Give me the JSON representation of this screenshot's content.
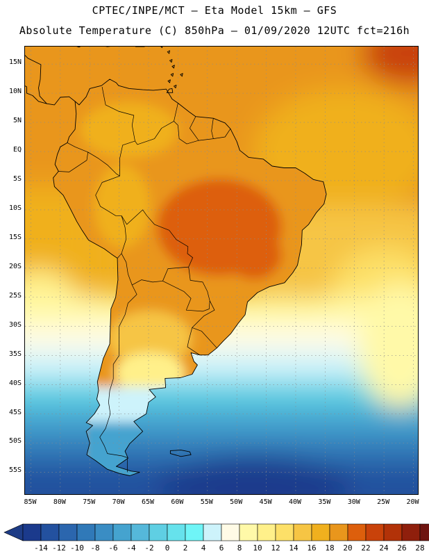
{
  "header": {
    "line1": "CPTEC/INPE/MCT –  Eta Model 15km – GFS",
    "line2": "Absolute Temperature (C) 850hPa – 01/09/2020 12UTC fct=216h"
  },
  "map": {
    "lat_labels": [
      "15N",
      "10N",
      "5N",
      "EQ",
      "5S",
      "10S",
      "15S",
      "20S",
      "25S",
      "30S",
      "35S",
      "40S",
      "45S",
      "50S",
      "55S"
    ],
    "lon_labels": [
      "85W",
      "80W",
      "75W",
      "70W",
      "65W",
      "60W",
      "55W",
      "50W",
      "45W",
      "40W",
      "35W",
      "30W",
      "25W",
      "20W"
    ],
    "lat_values": [
      15,
      10,
      5,
      0,
      -5,
      -10,
      -15,
      -20,
      -25,
      -30,
      -35,
      -40,
      -45,
      -50,
      -55
    ],
    "lon_values": [
      -85,
      -80,
      -75,
      -70,
      -65,
      -60,
      -55,
      -50,
      -45,
      -40,
      -35,
      -30,
      -25,
      -20
    ],
    "extent": {
      "lon_min": -86,
      "lon_max": -19,
      "lat_min": -59,
      "lat_max": 18
    }
  },
  "colorbar": {
    "labels": [
      "-14",
      "-12",
      "-10",
      "-8",
      "-6",
      "-4",
      "-2",
      "0",
      "2",
      "4",
      "6",
      "8",
      "10",
      "12",
      "14",
      "16",
      "18",
      "20",
      "22",
      "24",
      "26",
      "28"
    ],
    "colors": [
      "#1b3a8c",
      "#23519f",
      "#2b66ae",
      "#3079b8",
      "#3a8dc4",
      "#45a3cf",
      "#55b8da",
      "#5fcfe3",
      "#66e2ec",
      "#6ff5f7",
      "#cdf3fb",
      "#fffbe6",
      "#fff9a8",
      "#fff08a",
      "#fde068",
      "#f6c544",
      "#f0b01e",
      "#e9961c",
      "#dd5f0c",
      "#c9420a",
      "#b23208",
      "#8f1f0c",
      "#6f1410"
    ],
    "left_cap_color": "#1e3c86",
    "right_cap_color": "#7a0d14"
  }
}
